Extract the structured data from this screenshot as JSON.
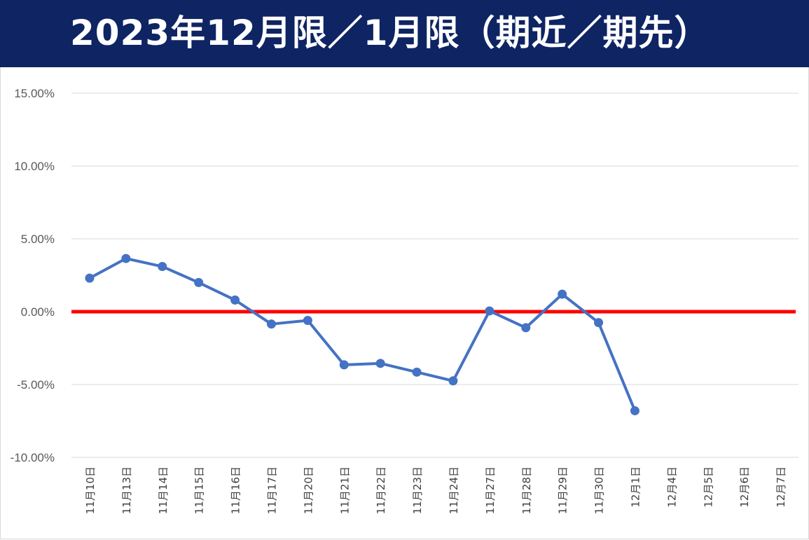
{
  "title": "2023年12月限／1月限（期近／期先）",
  "chart_data": {
    "type": "line",
    "title": "2023年12月限／1月限（期近／期先）",
    "xlabel": "",
    "ylabel": "",
    "categories": [
      "11月10日",
      "11月13日",
      "11月14日",
      "11月15日",
      "11月16日",
      "11月17日",
      "11月20日",
      "11月21日",
      "11月22日",
      "11月23日",
      "11月24日",
      "11月27日",
      "11月28日",
      "11月29日",
      "11月30日",
      "12月1日",
      "12月4日",
      "12月5日",
      "12月6日",
      "12月7日"
    ],
    "series": [
      {
        "values": [
          2.3,
          3.65,
          3.1,
          2.0,
          0.8,
          -0.85,
          -0.6,
          -3.65,
          -3.55,
          -4.15,
          -4.75,
          0.05,
          -1.1,
          1.2,
          -0.75,
          -6.8,
          null,
          null,
          null,
          null
        ]
      }
    ],
    "ylim": [
      -10,
      15
    ],
    "yticks": [
      15,
      10,
      5,
      0,
      -5,
      -10
    ],
    "ytick_labels": [
      "15.00%",
      "10.00%",
      "5.00%",
      "0.00%",
      "-5.00%",
      "-10.00%"
    ],
    "reference_line": 0,
    "grid": true,
    "legend": "none",
    "colors": {
      "series": "#4472c4",
      "reference_line": "#ff0000",
      "grid": "#d9d9d9",
      "title_bg": "#0e2463",
      "title_text": "#ffffff"
    }
  }
}
